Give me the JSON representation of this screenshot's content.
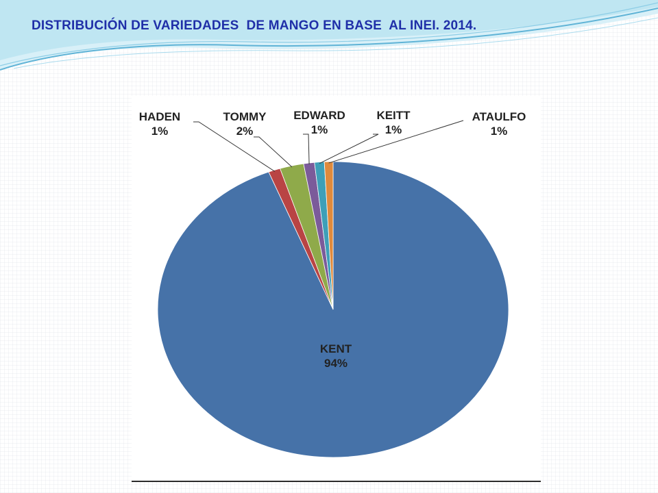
{
  "slide": {
    "title": "DISTRIBUCIÓN DE VARIEDADES  DE MANGO EN BASE  AL INEI. 2014."
  },
  "colors": {
    "title": "#1f2fa8",
    "swoosh_light": "#bfe6f2",
    "swoosh_dark": "#5fb3d6"
  },
  "chart_data": {
    "type": "pie",
    "title": "",
    "start_angle_deg": 0,
    "direction": "clockwise",
    "slices": [
      {
        "label": "KENT",
        "pct_label": "94%",
        "value": 94.2,
        "color": "#4672a8"
      },
      {
        "label": "HADEN",
        "pct_label": "1%",
        "value": 1.1,
        "color": "#b94444"
      },
      {
        "label": "TOMMY",
        "pct_label": "2%",
        "value": 2.2,
        "color": "#8faa4a"
      },
      {
        "label": "EDWARD",
        "pct_label": "1%",
        "value": 1.0,
        "color": "#7b5b9a"
      },
      {
        "label": "KEITT",
        "pct_label": "1%",
        "value": 0.9,
        "color": "#3e9fb8"
      },
      {
        "label": "ATAULFO",
        "pct_label": "1%",
        "value": 0.8,
        "color": "#e08a3c"
      }
    ]
  }
}
